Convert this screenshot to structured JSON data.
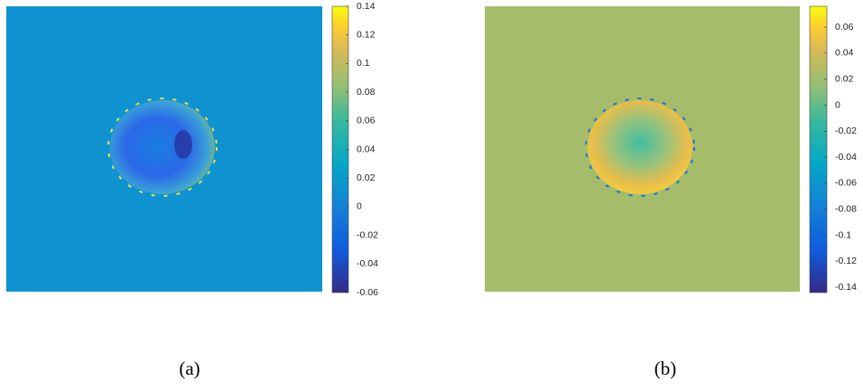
{
  "chart_data": [
    {
      "type": "heatmap",
      "caption": "(a)",
      "clim": [
        -0.06,
        0.14
      ],
      "cticks": [
        -0.06,
        -0.04,
        -0.02,
        0,
        0.02,
        0.04,
        0.06,
        0.08,
        0.1,
        0.12,
        0.14
      ]
    },
    {
      "type": "heatmap",
      "caption": "(b)",
      "clim": [
        -0.144,
        0.076
      ],
      "cticks": [
        -0.14,
        -0.12,
        -0.1,
        -0.08,
        -0.06,
        -0.04,
        -0.02,
        0,
        0.02,
        0.04,
        0.06
      ]
    }
  ]
}
